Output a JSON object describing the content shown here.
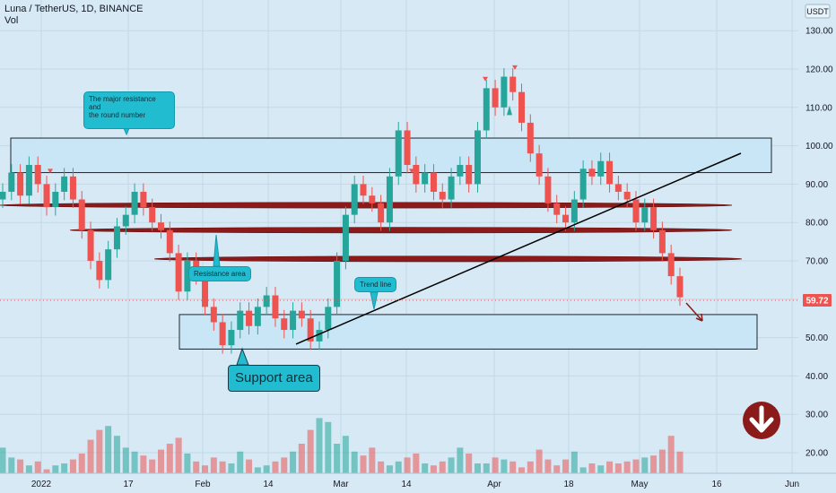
{
  "header": {
    "title": "Luna / TetherUS, 1D, BINANCE",
    "volume_label": "Vol"
  },
  "currency": "USDT",
  "last_price": "59.72",
  "annotations": {
    "major_resistance": [
      "The major resistance",
      "and",
      "the round number"
    ],
    "resistance_area": "Resistance area",
    "trend_line": "Trend line",
    "support_area": "Support area"
  },
  "colors": {
    "up": "#26a69a",
    "down": "#ef5350",
    "background": "#d6e9f5",
    "zone_fill": "#c8e6f5",
    "resistance_band": "#8b1a1a",
    "callout": "#22bcd0",
    "down_badge": "#8b1a1a"
  },
  "icons": {
    "down_arrow": "arrow-down-circle-icon"
  },
  "chart_data": {
    "type": "candlestick",
    "title": "Luna / TetherUS, 1D, BINANCE",
    "ylim": [
      20,
      135
    ],
    "y_ticks": [
      "130.00",
      "120.00",
      "110.00",
      "100.00",
      "90.00",
      "80.00",
      "70.00",
      "60.00",
      "50.00",
      "40.00",
      "30.00",
      "20.00"
    ],
    "x_ticks": [
      "2022",
      "17",
      "Feb",
      "14",
      "Mar",
      "14",
      "Apr",
      "18",
      "May",
      "16",
      "Jun"
    ],
    "grid": true,
    "series": [
      {
        "name": "Luna / TetherUS",
        "ohlc_close_path": [
          88,
          93,
          87,
          95,
          90,
          84,
          88,
          92,
          86,
          78,
          70,
          65,
          73,
          79,
          82,
          88,
          84,
          80,
          78,
          72,
          62,
          70,
          66,
          58,
          54,
          48,
          52,
          57,
          53,
          58,
          61,
          55,
          52,
          57,
          55,
          49,
          52,
          58,
          70,
          82,
          90,
          87,
          85,
          80,
          92,
          104,
          95,
          90,
          93,
          88,
          86,
          92,
          95,
          90,
          104,
          115,
          110,
          118,
          114,
          106,
          98,
          92,
          85,
          82,
          80,
          86,
          94,
          92,
          96,
          90,
          88,
          86,
          80,
          84,
          78,
          72,
          66,
          60.5
        ]
      },
      {
        "name": "Vol",
        "values": [
          31,
          26,
          25,
          22,
          24,
          20,
          22,
          23,
          25,
          28,
          35,
          40,
          42,
          37,
          31,
          29,
          27,
          25,
          30,
          33,
          36,
          28,
          24,
          22,
          26,
          24,
          23,
          29,
          25,
          21,
          22,
          24,
          26,
          29,
          33,
          40,
          46,
          44,
          33,
          37,
          29,
          27,
          31,
          24,
          22,
          24,
          26,
          28,
          23,
          22,
          24,
          26,
          31,
          28,
          23,
          23,
          26,
          25,
          24,
          21,
          24,
          30,
          25,
          22,
          25,
          29,
          21,
          23,
          22,
          24,
          23,
          24,
          25,
          26,
          27,
          30,
          37,
          29
        ]
      }
    ],
    "last_value": 59.72,
    "zones": [
      {
        "label": "major resistance",
        "range": [
          93,
          102
        ]
      },
      {
        "label": "support",
        "range": [
          47,
          56
        ]
      }
    ],
    "resistance_bands": [
      84.5,
      78,
      70.5
    ],
    "trend_line": {
      "from": [
        40,
        49
      ],
      "to": [
        78,
        95
      ]
    }
  }
}
